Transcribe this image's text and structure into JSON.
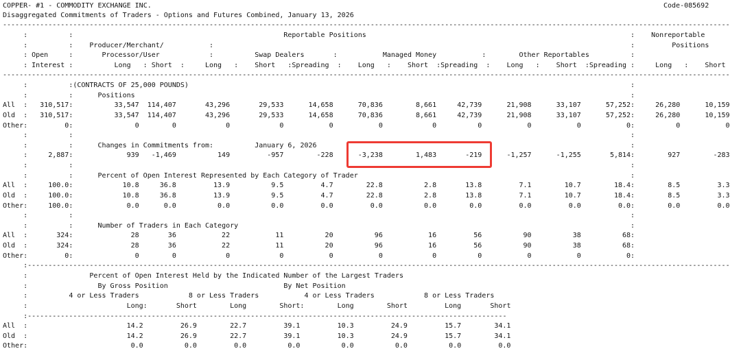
{
  "title": "COPPER- #1 - COMMODITY EXCHANGE INC.",
  "code": "Code-085692",
  "subtitle": "Disaggregated Commitments of Traders - Options and Futures Combined, January 13, 2026",
  "contracts_note": "(CONTRACTS OF 25,000 POUNDS)",
  "highlight_color": "#ee3b33",
  "columns": {
    "reportable": "Reportable Positions",
    "nonreportable_1": "Nonreportable",
    "nonreportable_2": "Positions",
    "open_1": "Open",
    "open_2": "Interest",
    "producer_1": "Producer/Merchant/",
    "producer_2": "Processor/User",
    "swap": "Swap Dealers",
    "managed": "Managed Money",
    "other": "Other Reportables",
    "long": "Long",
    "short": "Short",
    "spreading": "Spreading"
  },
  "sections": {
    "positions": {
      "heading": "Positions",
      "rows": [
        {
          "label": "All",
          "oi": "310,517",
          "v": [
            "33,547",
            "114,407",
            "43,296",
            "29,533",
            "14,658",
            "70,836",
            "8,661",
            "42,739",
            "21,908",
            "33,107",
            "57,252",
            "26,280",
            "10,159"
          ]
        },
        {
          "label": "Old",
          "oi": "310,517",
          "v": [
            "33,547",
            "114,407",
            "43,296",
            "29,533",
            "14,658",
            "70,836",
            "8,661",
            "42,739",
            "21,908",
            "33,107",
            "57,252",
            "26,280",
            "10,159"
          ]
        },
        {
          "label": "Other",
          "oi": "0",
          "v": [
            "0",
            "0",
            "0",
            "0",
            "0",
            "0",
            "0",
            "0",
            "0",
            "0",
            "0",
            "0",
            "0"
          ]
        }
      ]
    },
    "changes": {
      "heading": "Changes in Commitments from:",
      "date": "January 6, 2026",
      "row": {
        "oi": "2,887",
        "v": [
          "939",
          "-1,469",
          "149",
          "-957",
          "-228",
          "-3,238",
          "1,483",
          "-219",
          "-1,257",
          "-1,255",
          "5,814",
          "927",
          "-283"
        ]
      }
    },
    "percent": {
      "heading": "Percent of Open Interest Represented by Each Category of Trader",
      "rows": [
        {
          "label": "All",
          "oi": "100.0",
          "v": [
            "10.8",
            "36.8",
            "13.9",
            "9.5",
            "4.7",
            "22.8",
            "2.8",
            "13.8",
            "7.1",
            "10.7",
            "18.4",
            "8.5",
            "3.3"
          ]
        },
        {
          "label": "Old",
          "oi": "100.0",
          "v": [
            "10.8",
            "36.8",
            "13.9",
            "9.5",
            "4.7",
            "22.8",
            "2.8",
            "13.8",
            "7.1",
            "10.7",
            "18.4",
            "8.5",
            "3.3"
          ]
        },
        {
          "label": "Other",
          "oi": "100.0",
          "v": [
            "0.0",
            "0.0",
            "0.0",
            "0.0",
            "0.0",
            "0.0",
            "0.0",
            "0.0",
            "0.0",
            "0.0",
            "0.0",
            "0.0",
            "0.0"
          ]
        }
      ]
    },
    "traders": {
      "heading": "Number of Traders in Each Category",
      "rows": [
        {
          "label": "All",
          "oi": "324",
          "v": [
            "28",
            "36",
            "22",
            "11",
            "20",
            "96",
            "16",
            "56",
            "90",
            "38",
            "68"
          ]
        },
        {
          "label": "Old",
          "oi": "324",
          "v": [
            "28",
            "36",
            "22",
            "11",
            "20",
            "96",
            "16",
            "56",
            "90",
            "38",
            "68"
          ]
        },
        {
          "label": "Other",
          "oi": "0",
          "v": [
            "0",
            "0",
            "0",
            "0",
            "0",
            "0",
            "0",
            "0",
            "0",
            "0",
            "0"
          ]
        }
      ]
    },
    "largest": {
      "heading": "Percent of Open Interest Held by the Indicated Number of the Largest Traders",
      "gross": "By Gross Position",
      "net": "By Net Position",
      "group_4": "4 or Less Traders",
      "group_8": "8 or Less Traders",
      "col_labels": [
        "Long:",
        "Short",
        "Long",
        "Short:",
        "Long",
        "Short",
        "Long",
        "Short"
      ],
      "rows": [
        {
          "label": "All",
          "v": [
            "14.2",
            "26.9",
            "22.7",
            "39.1",
            "10.3",
            "24.9",
            "15.7",
            "34.1"
          ]
        },
        {
          "label": "Old",
          "v": [
            "14.2",
            "26.9",
            "22.7",
            "39.1",
            "10.3",
            "24.9",
            "15.7",
            "34.1"
          ]
        },
        {
          "label": "Other",
          "v": [
            "0.0",
            "0.0",
            "0.0",
            "0.0",
            "0.0",
            "0.0",
            "0.0",
            "0.0"
          ]
        }
      ]
    }
  }
}
